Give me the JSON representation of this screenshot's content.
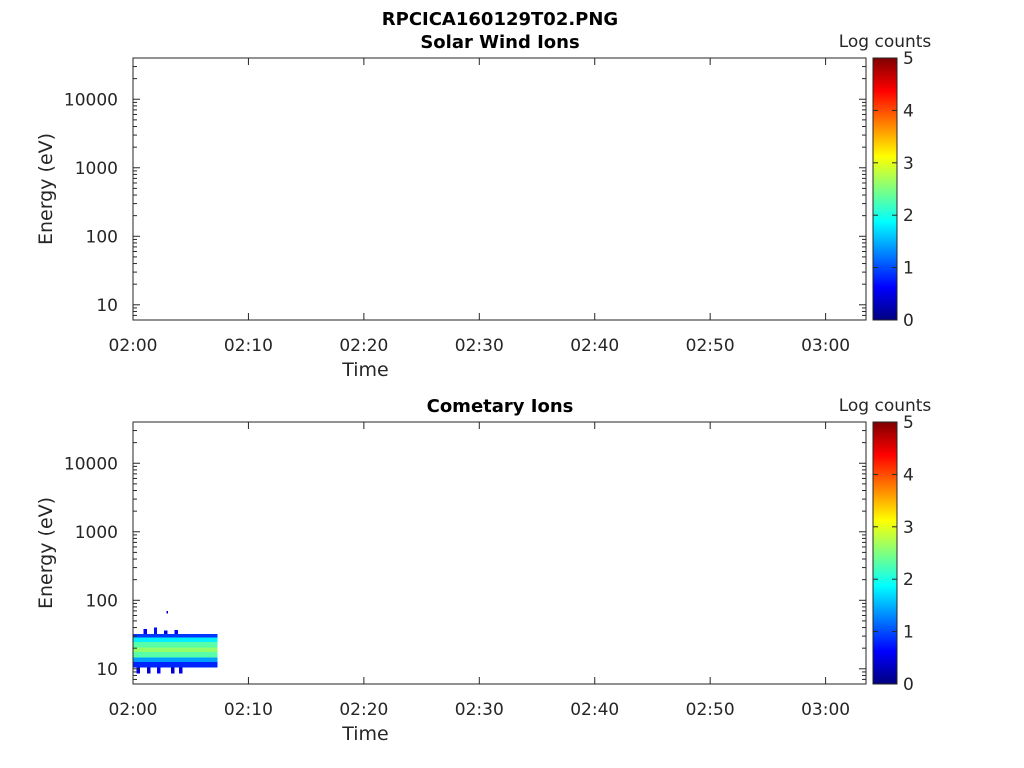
{
  "figure": {
    "title": "RPCICA160129T02.PNG"
  },
  "colorbar": {
    "label": "Log counts",
    "ticks": [
      "0",
      "1",
      "2",
      "3",
      "4",
      "5"
    ],
    "range": [
      0,
      5
    ],
    "colormap": [
      "#00007f",
      "#0000ff",
      "#007fff",
      "#00ffff",
      "#7fff7f",
      "#ffff00",
      "#ff7f00",
      "#ff0000",
      "#7f0000"
    ]
  },
  "chart_data": [
    {
      "type": "heatmap",
      "title": "Solar Wind Ions",
      "xlabel": "Time",
      "ylabel": "Energy (eV)",
      "x_ticks": [
        "02:00",
        "02:10",
        "02:20",
        "02:30",
        "02:40",
        "02:50",
        "03:00"
      ],
      "xlim_minutes": [
        0,
        63.5
      ],
      "y_scale": "log",
      "y_ticks": [
        "10",
        "100",
        "1000",
        "10000"
      ],
      "ylim": [
        6,
        40000
      ],
      "colorbar_range": [
        0,
        5
      ],
      "cells": []
    },
    {
      "type": "heatmap",
      "title": "Cometary Ions",
      "xlabel": "Time",
      "ylabel": "Energy (eV)",
      "x_ticks": [
        "02:00",
        "02:10",
        "02:20",
        "02:30",
        "02:40",
        "02:50",
        "03:00"
      ],
      "xlim_minutes": [
        0,
        63.5
      ],
      "y_scale": "log",
      "y_ticks": [
        "10",
        "100",
        "1000",
        "10000"
      ],
      "ylim": [
        6,
        40000
      ],
      "colorbar_range": [
        0,
        5
      ],
      "cells": [
        {
          "t0": 0,
          "t1": 7.3,
          "e0": 10.5,
          "e1": 12.5,
          "value": 0.8
        },
        {
          "t0": 0,
          "t1": 7.3,
          "e0": 12.5,
          "e1": 14.5,
          "value": 1.4
        },
        {
          "t0": 0,
          "t1": 7.3,
          "e0": 14.5,
          "e1": 17.5,
          "value": 2.3
        },
        {
          "t0": 0,
          "t1": 7.3,
          "e0": 17.5,
          "e1": 20.5,
          "value": 2.6
        },
        {
          "t0": 0,
          "t1": 7.3,
          "e0": 20.5,
          "e1": 24.5,
          "value": 2.3
        },
        {
          "t0": 0,
          "t1": 7.3,
          "e0": 24.5,
          "e1": 28.5,
          "value": 1.8
        },
        {
          "t0": 0,
          "t1": 7.3,
          "e0": 28.5,
          "e1": 32,
          "value": 0.9
        },
        {
          "t0": 0.3,
          "t1": 0.6,
          "e0": 8.5,
          "e1": 10.5,
          "value": 0.5
        },
        {
          "t0": 1.2,
          "t1": 1.5,
          "e0": 8.5,
          "e1": 10.5,
          "value": 0.4
        },
        {
          "t0": 2.1,
          "t1": 2.4,
          "e0": 8.5,
          "e1": 10.5,
          "value": 0.6
        },
        {
          "t0": 3.3,
          "t1": 3.6,
          "e0": 8.5,
          "e1": 10.5,
          "value": 0.4
        },
        {
          "t0": 4.0,
          "t1": 4.3,
          "e0": 8.5,
          "e1": 10.5,
          "value": 0.5
        },
        {
          "t0": 0.9,
          "t1": 1.2,
          "e0": 32,
          "e1": 38,
          "value": 0.6
        },
        {
          "t0": 1.8,
          "t1": 2.1,
          "e0": 32,
          "e1": 40,
          "value": 0.7
        },
        {
          "t0": 2.7,
          "t1": 3.0,
          "e0": 32,
          "e1": 36,
          "value": 0.5
        },
        {
          "t0": 3.6,
          "t1": 3.9,
          "e0": 32,
          "e1": 37,
          "value": 0.6
        },
        {
          "t0": 2.9,
          "t1": 3.05,
          "e0": 64,
          "e1": 70,
          "value": 0.3
        }
      ]
    }
  ]
}
